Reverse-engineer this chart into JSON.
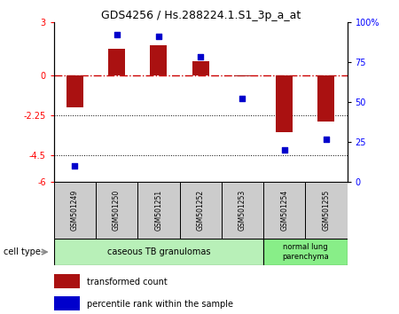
{
  "title": "GDS4256 / Hs.288224.1.S1_3p_a_at",
  "samples": [
    "GSM501249",
    "GSM501250",
    "GSM501251",
    "GSM501252",
    "GSM501253",
    "GSM501254",
    "GSM501255"
  ],
  "bar_values": [
    -1.8,
    1.5,
    1.7,
    0.8,
    -0.05,
    -3.2,
    -2.6
  ],
  "scatter_values": [
    10,
    92,
    91,
    78,
    52,
    20,
    27
  ],
  "ylim_left": [
    -6,
    3
  ],
  "ylim_right": [
    0,
    100
  ],
  "left_ticks": [
    3,
    0,
    -2.25,
    -4.5,
    -6
  ],
  "right_ticks": [
    100,
    75,
    50,
    25,
    0
  ],
  "hline_y": 0,
  "dotted_lines": [
    -2.25,
    -4.5
  ],
  "bar_color": "#aa1111",
  "scatter_color": "#0000cc",
  "dashed_color": "#cc0000",
  "group1_label": "caseous TB granulomas",
  "group2_label": "normal lung\nparenchyma",
  "group1_indices": [
    0,
    1,
    2,
    3,
    4
  ],
  "group2_indices": [
    5,
    6
  ],
  "group1_color": "#b8f0b8",
  "group2_color": "#88ee88",
  "cell_type_label": "cell type",
  "legend_bar_label": "transformed count",
  "legend_scatter_label": "percentile rank within the sample",
  "bg_color": "#ffffff",
  "bar_width": 0.4,
  "sample_box_color": "#cccccc"
}
